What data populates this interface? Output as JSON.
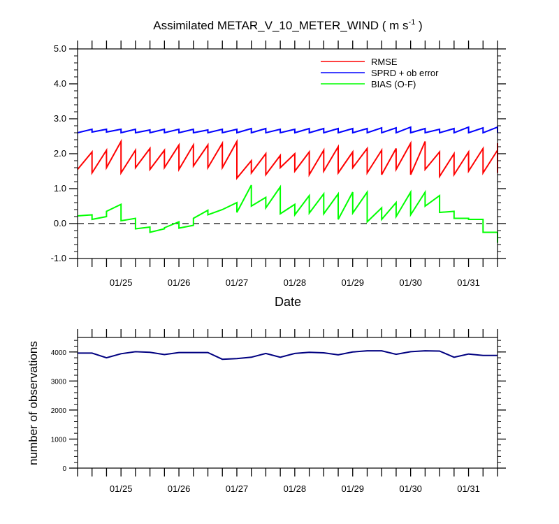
{
  "chart_data": [
    {
      "type": "line",
      "title": "Assimilated METAR_V_10_METER_WIND ( m s",
      "title_superscript": "-1",
      "title_close": " )",
      "xlabel": "Date",
      "ylabel": "",
      "ylim": [
        -1.0,
        5.0
      ],
      "yticks": [
        "-1.0",
        "0.0",
        "1.0",
        "2.0",
        "3.0",
        "4.0",
        "5.0"
      ],
      "xlim": [
        "2014-01-24T06:00",
        "2014-01-31T12:00"
      ],
      "xtick_labels": [
        "01/25",
        "01/26",
        "01/27",
        "01/28",
        "01/29",
        "01/30",
        "01/31"
      ],
      "xticks": [
        "2014-01-25",
        "2014-01-26",
        "2014-01-27",
        "2014-01-28",
        "2014-01-29",
        "2014-01-30",
        "2014-01-31"
      ],
      "zero_line": true,
      "legend_position": "top-right",
      "colors": {
        "rmse": "#ff0000",
        "sprd": "#0000ff",
        "bias": "#00ff00"
      },
      "x": [
        "2014-01-24T06:00",
        "2014-01-24T12:00",
        "2014-01-24T18:00",
        "2014-01-25T00:00",
        "2014-01-25T06:00",
        "2014-01-25T12:00",
        "2014-01-25T18:00",
        "2014-01-26T00:00",
        "2014-01-26T06:00",
        "2014-01-26T12:00",
        "2014-01-26T18:00",
        "2014-01-27T00:00",
        "2014-01-27T06:00",
        "2014-01-27T12:00",
        "2014-01-27T18:00",
        "2014-01-28T00:00",
        "2014-01-28T06:00",
        "2014-01-28T12:00",
        "2014-01-28T18:00",
        "2014-01-29T00:00",
        "2014-01-29T06:00",
        "2014-01-29T12:00",
        "2014-01-29T18:00",
        "2014-01-30T00:00",
        "2014-01-30T06:00",
        "2014-01-30T12:00",
        "2014-01-30T18:00",
        "2014-01-31T00:00",
        "2014-01-31T06:00",
        "2014-01-31T12:00"
      ],
      "series": [
        {
          "name": "RMSE",
          "key": "rmse",
          "start": [
            1.55,
            1.45,
            1.6,
            1.45,
            1.6,
            1.55,
            1.6,
            1.55,
            1.65,
            1.6,
            1.6,
            1.3,
            1.45,
            1.4,
            1.6,
            1.5,
            1.4,
            1.5,
            1.45,
            1.6,
            1.45,
            1.4,
            1.55,
            1.4,
            1.55,
            1.35,
            1.4,
            1.5,
            1.45,
            1.45
          ],
          "end": [
            2.05,
            2.1,
            2.35,
            2.1,
            2.15,
            2.1,
            2.25,
            2.25,
            2.25,
            2.3,
            2.35,
            1.8,
            2.0,
            1.95,
            2.0,
            2.05,
            2.1,
            2.2,
            2.05,
            2.15,
            2.1,
            2.15,
            2.3,
            2.35,
            2.05,
            2.0,
            2.05,
            2.15,
            2.1,
            2.3
          ]
        },
        {
          "name": "SPRD + ob error",
          "key": "sprd",
          "start": [
            2.6,
            2.62,
            2.62,
            2.6,
            2.6,
            2.6,
            2.6,
            2.6,
            2.6,
            2.6,
            2.6,
            2.6,
            2.6,
            2.6,
            2.6,
            2.6,
            2.6,
            2.6,
            2.6,
            2.6,
            2.6,
            2.6,
            2.6,
            2.6,
            2.6,
            2.6,
            2.6,
            2.6,
            2.6,
            2.6
          ],
          "end": [
            2.7,
            2.7,
            2.7,
            2.7,
            2.68,
            2.7,
            2.7,
            2.7,
            2.68,
            2.7,
            2.7,
            2.72,
            2.72,
            2.7,
            2.7,
            2.72,
            2.72,
            2.72,
            2.72,
            2.72,
            2.74,
            2.74,
            2.76,
            2.72,
            2.7,
            2.72,
            2.76,
            2.74,
            2.76,
            2.76
          ]
        },
        {
          "name": "BIAS (O-F)",
          "key": "bias",
          "start": [
            0.22,
            0.12,
            0.35,
            0.08,
            -0.15,
            -0.25,
            -0.12,
            -0.13,
            0.15,
            0.25,
            0.4,
            0.32,
            0.5,
            0.45,
            0.28,
            0.25,
            0.3,
            0.28,
            0.12,
            0.3,
            0.05,
            0.12,
            0.2,
            0.25,
            0.5,
            0.32,
            0.15,
            0.12,
            -0.25,
            -0.55
          ],
          "end": [
            0.25,
            0.2,
            0.55,
            0.15,
            -0.1,
            -0.15,
            0.05,
            -0.05,
            0.38,
            0.4,
            0.6,
            1.1,
            0.75,
            1.05,
            0.55,
            0.8,
            0.85,
            0.85,
            0.9,
            0.9,
            0.45,
            0.6,
            0.9,
            0.9,
            0.8,
            0.35,
            0.15,
            0.12,
            -0.25,
            -0.55
          ]
        }
      ]
    },
    {
      "type": "line",
      "title": "",
      "xlabel": "",
      "ylabel": "number of observations",
      "ylim": [
        0,
        4500
      ],
      "yticks": [
        "0",
        "1000",
        "2000",
        "3000",
        "4000"
      ],
      "xlim": [
        "2014-01-24T06:00",
        "2014-01-31T12:00"
      ],
      "xtick_labels": [
        "01/25",
        "01/26",
        "01/27",
        "01/28",
        "01/29",
        "01/30",
        "01/31"
      ],
      "x": [
        "2014-01-24T06:00",
        "2014-01-24T12:00",
        "2014-01-24T18:00",
        "2014-01-25T00:00",
        "2014-01-25T06:00",
        "2014-01-25T12:00",
        "2014-01-25T18:00",
        "2014-01-26T00:00",
        "2014-01-26T06:00",
        "2014-01-26T12:00",
        "2014-01-26T18:00",
        "2014-01-27T00:00",
        "2014-01-27T06:00",
        "2014-01-27T12:00",
        "2014-01-27T18:00",
        "2014-01-28T00:00",
        "2014-01-28T06:00",
        "2014-01-28T12:00",
        "2014-01-28T18:00",
        "2014-01-29T00:00",
        "2014-01-29T06:00",
        "2014-01-29T12:00",
        "2014-01-29T18:00",
        "2014-01-30T00:00",
        "2014-01-30T06:00",
        "2014-01-30T12:00",
        "2014-01-30T18:00",
        "2014-01-31T00:00",
        "2014-01-31T06:00",
        "2014-01-31T12:00"
      ],
      "series": [
        {
          "key": "obs",
          "color": "#000080",
          "values": [
            3960,
            3960,
            3800,
            3940,
            4010,
            3990,
            3910,
            3980,
            3980,
            3980,
            3750,
            3770,
            3820,
            3950,
            3820,
            3950,
            3990,
            3970,
            3900,
            4000,
            4040,
            4040,
            3920,
            4010,
            4040,
            4030,
            3820,
            3930,
            3880,
            3880
          ]
        }
      ]
    }
  ]
}
